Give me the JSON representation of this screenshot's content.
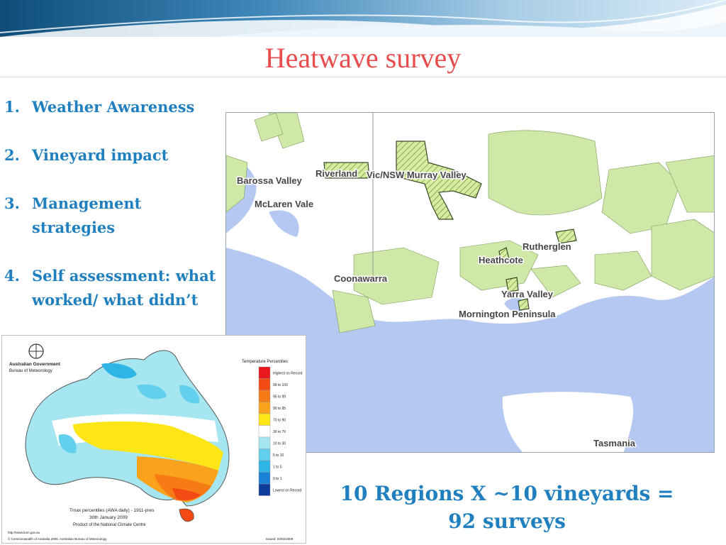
{
  "slide": {
    "title": "Heatwave survey",
    "list": [
      {
        "num": "1.",
        "text": "Weather Awareness"
      },
      {
        "num": "2.",
        "text": "Vineyard impact"
      },
      {
        "num": "3.",
        "text": "Management strategies"
      },
      {
        "num": "4.",
        "text": "Self assessment: what worked/ what didn’t"
      }
    ],
    "summary_line1": "10 Regions X ~10 vineyards =",
    "summary_line2": "92 surveys"
  },
  "region_map": {
    "labels": [
      "Barossa Valley",
      "Riverland",
      "Vic/NSW Murray Valley",
      "McLaren Vale",
      "Rutherglen",
      "Heathcote",
      "Coonawarra",
      "Yarra Valley",
      "Mornington Peninsula",
      "Tasmania"
    ]
  },
  "temperature_map": {
    "agency1": "Australian Government",
    "agency2": "Bureau of Meteorology",
    "legend_title": "Temperature Percentiles",
    "legend": [
      {
        "label": "Highest on Record",
        "color": "#e8191e"
      },
      {
        "label": "99 to 100",
        "color": "#f24a12"
      },
      {
        "label": "95 to 99",
        "color": "#f77b14"
      },
      {
        "label": "90 to 95",
        "color": "#fba21c"
      },
      {
        "label": "70 to 90",
        "color": "#fde516"
      },
      {
        "label": "30 to 70",
        "color": "#ffffff"
      },
      {
        "label": "10 to 30",
        "color": "#a6e6f0"
      },
      {
        "label": "5 to 10",
        "color": "#62d0ec"
      },
      {
        "label": "1 to 5",
        "color": "#2fb4e6"
      },
      {
        "label": "0 to 1",
        "color": "#1a82d6"
      },
      {
        "label": "Lowest on Record",
        "color": "#0e3c9c"
      }
    ],
    "caption1": "Tmax percentiles (AWA daily) - 1911-pres",
    "caption2": "30th January 2009",
    "caption3": "Product of the National Climate Centre",
    "url": "http://www.bom.gov.au",
    "copyright": "© Commonwealth of Australia 2009, Australian Bureau of Meteorology",
    "issued": "Issued: 03/02/2009"
  }
}
